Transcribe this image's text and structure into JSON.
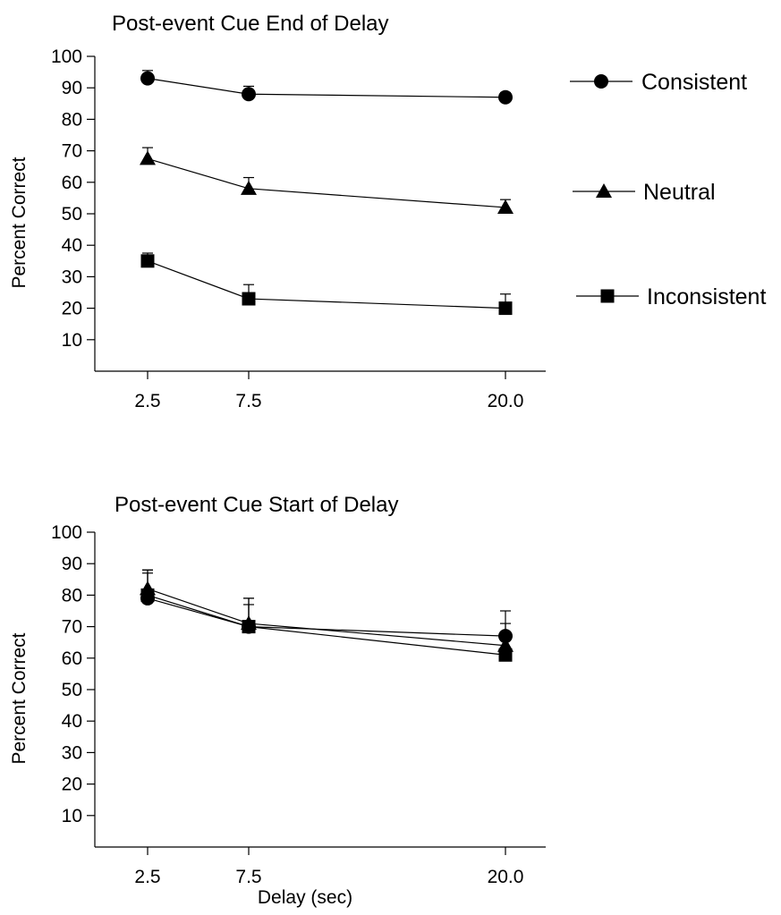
{
  "chart_data": [
    {
      "type": "line",
      "title": "Post-event Cue End of Delay",
      "xlabel": "",
      "ylabel": "Percent Correct",
      "x": [
        2.5,
        7.5,
        20.0
      ],
      "x_tick_labels": [
        "2.5",
        "7.5",
        "20.0"
      ],
      "ylim": [
        0,
        100
      ],
      "y_ticks": [
        10,
        20,
        30,
        40,
        50,
        60,
        70,
        80,
        90,
        100
      ],
      "grid": false,
      "legend_placement": "right",
      "series": [
        {
          "name": "Consistent",
          "marker": "circle",
          "values": [
            93,
            88,
            87
          ],
          "error": [
            2.5,
            2.5,
            1.5
          ]
        },
        {
          "name": "Neutral",
          "marker": "triangle",
          "values": [
            67.5,
            58,
            52
          ],
          "error": [
            3.5,
            3.5,
            2.5
          ]
        },
        {
          "name": "Inconsistent",
          "marker": "square",
          "values": [
            35,
            23,
            20
          ],
          "error": [
            2.5,
            4.5,
            4.5
          ]
        }
      ]
    },
    {
      "type": "line",
      "title": "Post-event Cue Start of Delay",
      "xlabel": "Delay (sec)",
      "ylabel": "Percent Correct",
      "x": [
        2.5,
        7.5,
        20.0
      ],
      "x_tick_labels": [
        "2.5",
        "7.5",
        "20.0"
      ],
      "ylim": [
        0,
        100
      ],
      "y_ticks": [
        10,
        20,
        30,
        40,
        50,
        60,
        70,
        80,
        90,
        100
      ],
      "grid": false,
      "legend_placement": "none",
      "series": [
        {
          "name": "Consistent",
          "marker": "circle",
          "values": [
            79,
            70,
            67
          ],
          "error": [
            8,
            7,
            8
          ]
        },
        {
          "name": "Neutral",
          "marker": "triangle",
          "values": [
            82,
            71,
            64
          ],
          "error": [
            6,
            8,
            7
          ]
        },
        {
          "name": "Inconsistent",
          "marker": "square",
          "values": [
            80,
            70,
            61
          ],
          "error": [
            8,
            9,
            6
          ]
        }
      ]
    }
  ]
}
